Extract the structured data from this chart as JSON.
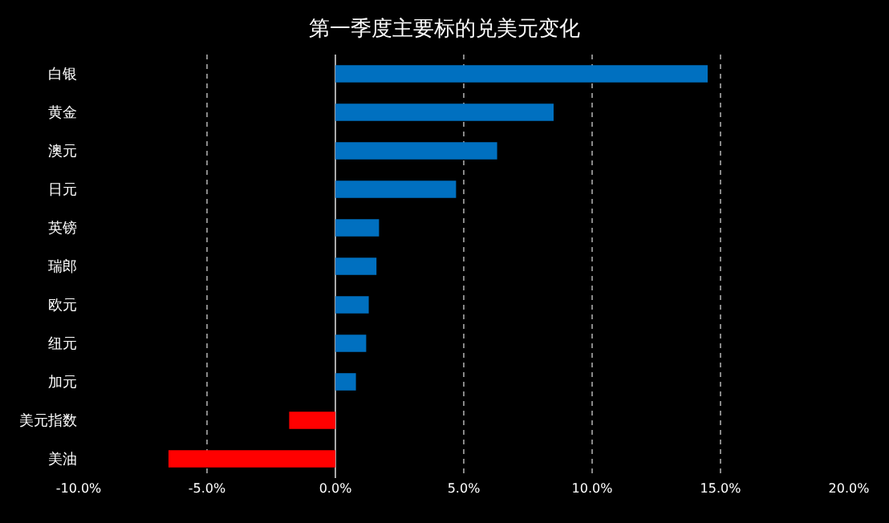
{
  "chart_data": {
    "type": "bar",
    "orientation": "horizontal",
    "title": "第一季度主要标的兑美元变化",
    "categories": [
      "白银",
      "黄金",
      "澳元",
      "日元",
      "英镑",
      "瑞郎",
      "欧元",
      "纽元",
      "加元",
      "美元指数",
      "美油"
    ],
    "values": [
      14.5,
      8.5,
      6.3,
      4.7,
      1.7,
      1.6,
      1.3,
      1.2,
      0.8,
      -1.8,
      -6.5
    ],
    "colors": [
      "#0070c0",
      "#0070c0",
      "#0070c0",
      "#0070c0",
      "#0070c0",
      "#0070c0",
      "#0070c0",
      "#0070c0",
      "#0070c0",
      "#ff0000",
      "#ff0000"
    ],
    "xlim": [
      -10,
      20
    ],
    "xticks": [
      {
        "value": -10,
        "label": "-10.0%"
      },
      {
        "value": -5,
        "label": "-5.0%"
      },
      {
        "value": 0,
        "label": "0.0%"
      },
      {
        "value": 5,
        "label": "5.0%"
      },
      {
        "value": 10,
        "label": "10.0%"
      },
      {
        "value": 15,
        "label": "15.0%"
      },
      {
        "value": 20,
        "label": "20.0%"
      }
    ],
    "grid": "x"
  }
}
